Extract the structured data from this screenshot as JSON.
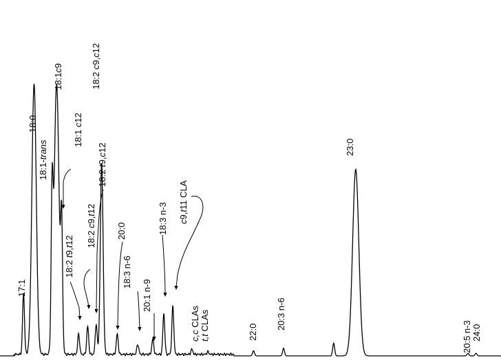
{
  "chart_data": {
    "type": "line",
    "title": "",
    "xlabel": "",
    "ylabel": "",
    "grid": false,
    "legend": "none",
    "line_color": "#000000",
    "x_range": [
      0,
      100
    ],
    "y_range": [
      0,
      100
    ],
    "series": [
      {
        "peaks": [
          {
            "id": "p17_1",
            "x": 4.7,
            "h": 24
          },
          {
            "id": "p18_0",
            "x": 6.8,
            "h": 106
          },
          {
            "id": "p18_1_trans",
            "x": 10.4,
            "h": 55
          },
          {
            "id": "p18_1_c9",
            "x": 11.3,
            "h": 106
          },
          {
            "id": "p18_1_c12",
            "x": 12.3,
            "h": 47
          },
          {
            "id": "p18_2_t9t12",
            "x": 15.7,
            "h": 8
          },
          {
            "id": "p18_2_c9t12",
            "x": 17.5,
            "h": 11
          },
          {
            "id": "p18_2_t9c12",
            "x": 19.2,
            "h": 12
          },
          {
            "id": "p18_2_c9c12",
            "x": 20.3,
            "h": 75
          },
          {
            "id": "p20_0",
            "x": 23.4,
            "h": 8
          },
          {
            "id": "p18_3_n6",
            "x": 27.5,
            "h": 4
          },
          {
            "id": "p20_1_n9",
            "x": 30.5,
            "h": 6
          },
          {
            "id": "p18_3_n3",
            "x": 32.7,
            "h": 16
          },
          {
            "id": "p_c9t11_cla",
            "x": 34.5,
            "h": 19
          },
          {
            "id": "p_cc_clas",
            "x": 38.3,
            "h": 2
          },
          {
            "id": "p_tt_clas",
            "x": 41.5,
            "h": 1
          },
          {
            "id": "p22_0",
            "x": 50.6,
            "h": 2
          },
          {
            "id": "p20_3_n6",
            "x": 56.6,
            "h": 3
          },
          {
            "id": "p_small_66",
            "x": 66.6,
            "h": 5
          },
          {
            "id": "p23_0",
            "x": 71.0,
            "h": 73
          },
          {
            "id": "p20_5_n3",
            "x": 93.4,
            "h": 1
          },
          {
            "id": "p24_0",
            "x": 95.0,
            "h": 1
          }
        ]
      }
    ],
    "labels": [
      {
        "id": "l17_1",
        "peak": "p17_1",
        "parts": [
          {
            "t": "17:1",
            "i": false
          }
        ]
      },
      {
        "id": "l18_0",
        "peak": "p18_0",
        "parts": [
          {
            "t": "18:0",
            "i": false
          }
        ]
      },
      {
        "id": "l18_1_trans",
        "peak": "p18_1_trans",
        "parts": [
          {
            "t": "18:1-",
            "i": false
          },
          {
            "t": "trans",
            "i": true
          }
        ]
      },
      {
        "id": "l18_1_c9",
        "peak": "p18_1_c9",
        "parts": [
          {
            "t": "18:1",
            "i": false
          },
          {
            "t": "c",
            "i": true
          },
          {
            "t": "9",
            "i": false
          }
        ]
      },
      {
        "id": "l18_1_c12",
        "peak": "p18_1_c12",
        "parts": [
          {
            "t": "18:1 ",
            "i": false
          },
          {
            "t": "c",
            "i": true
          },
          {
            "t": "12",
            "i": false
          }
        ]
      },
      {
        "id": "l18_2_t9t12",
        "peak": "p18_2_t9t12",
        "parts": [
          {
            "t": "18:2 ",
            "i": false
          },
          {
            "t": "t",
            "i": true
          },
          {
            "t": "9,",
            "i": false
          },
          {
            "t": "t",
            "i": true
          },
          {
            "t": "12",
            "i": false
          }
        ]
      },
      {
        "id": "l18_2_c9t12",
        "peak": "p18_2_c9t12",
        "parts": [
          {
            "t": "18:2 ",
            "i": false
          },
          {
            "t": "c",
            "i": true
          },
          {
            "t": "9,",
            "i": false
          },
          {
            "t": "t",
            "i": true
          },
          {
            "t": "12",
            "i": false
          }
        ]
      },
      {
        "id": "l18_2_t9c12",
        "peak": "p18_2_t9c12",
        "parts": [
          {
            "t": "18:2 ",
            "i": false
          },
          {
            "t": "t",
            "i": true
          },
          {
            "t": "9,",
            "i": false
          },
          {
            "t": "c",
            "i": true
          },
          {
            "t": "12",
            "i": false
          }
        ]
      },
      {
        "id": "l18_2_c9c12",
        "peak": "p18_2_c9c12",
        "parts": [
          {
            "t": "18:2 ",
            "i": false
          },
          {
            "t": "c",
            "i": true
          },
          {
            "t": "9,",
            "i": false
          },
          {
            "t": "c",
            "i": true
          },
          {
            "t": "12",
            "i": false
          }
        ]
      },
      {
        "id": "l20_0",
        "peak": "p20_0",
        "parts": [
          {
            "t": "20:0",
            "i": false
          }
        ]
      },
      {
        "id": "l18_3_n6",
        "peak": "p18_3_n6",
        "parts": [
          {
            "t": "18:3 n-6",
            "i": false
          }
        ]
      },
      {
        "id": "l20_1_n9",
        "peak": "p20_1_n9",
        "parts": [
          {
            "t": "20:1 n-9",
            "i": false
          }
        ]
      },
      {
        "id": "l18_3_n3",
        "peak": "p18_3_n3",
        "parts": [
          {
            "t": "18:3 n-3",
            "i": false
          }
        ]
      },
      {
        "id": "l_c9t11_cla",
        "peak": "p_c9t11_cla",
        "parts": [
          {
            "t": "c",
            "i": true
          },
          {
            "t": "9,",
            "i": false
          },
          {
            "t": "t",
            "i": true
          },
          {
            "t": "11 CLA",
            "i": false
          }
        ]
      },
      {
        "id": "l_cc_clas",
        "peak": "p_cc_clas",
        "parts": [
          {
            "t": "c,c",
            "i": true
          },
          {
            "t": " CLAs",
            "i": false
          }
        ]
      },
      {
        "id": "l_tt_clas",
        "peak": "p_tt_clas",
        "parts": [
          {
            "t": "t,t",
            "i": true
          },
          {
            "t": " CLAs",
            "i": false
          }
        ]
      },
      {
        "id": "l22_0",
        "peak": "p22_0",
        "parts": [
          {
            "t": "22:0",
            "i": false
          }
        ]
      },
      {
        "id": "l20_3_n6",
        "peak": "p20_3_n6",
        "parts": [
          {
            "t": "20:3 n-6",
            "i": false
          }
        ]
      },
      {
        "id": "l23_0",
        "peak": "p23_0",
        "parts": [
          {
            "t": "23:0",
            "i": false
          }
        ]
      },
      {
        "id": "l20_5_n3",
        "peak": "p20_5_n3",
        "parts": [
          {
            "t": "20:5 n-3",
            "i": false
          }
        ]
      },
      {
        "id": "l24_0",
        "peak": "p24_0",
        "parts": [
          {
            "t": "24:0",
            "i": false
          }
        ]
      }
    ]
  }
}
